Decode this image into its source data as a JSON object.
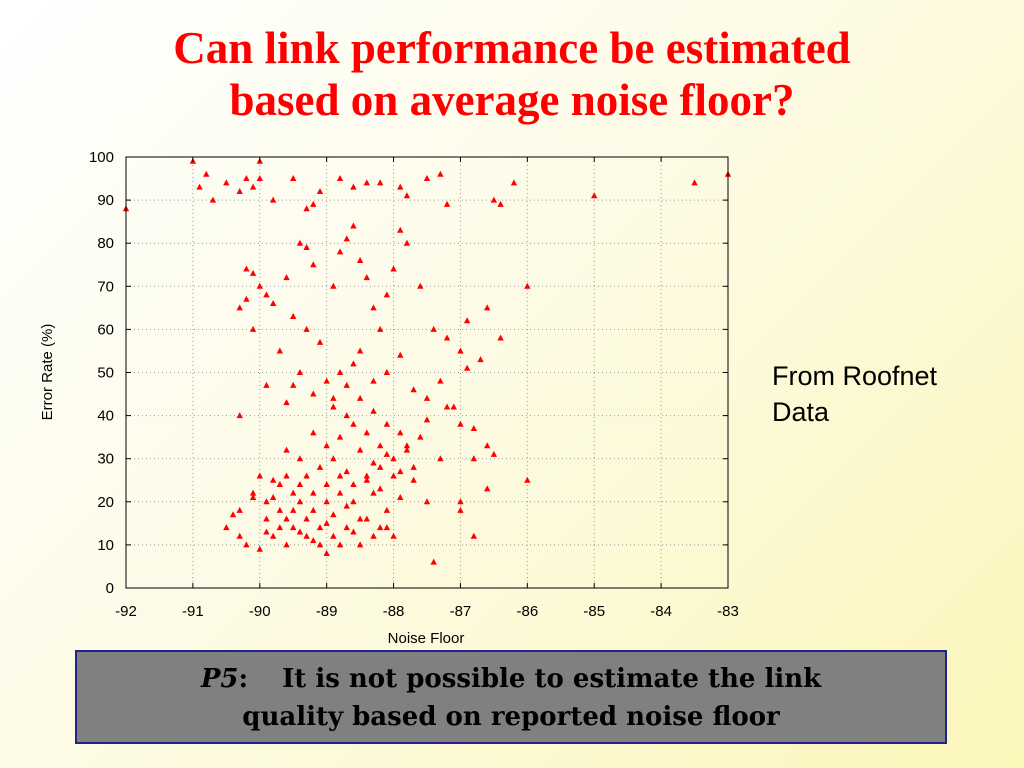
{
  "slide": {
    "title_lines": [
      "Can link performance be estimated",
      "based on average noise floor?"
    ],
    "side_note_lines": [
      "From Roofnet",
      "Data"
    ],
    "callout": {
      "label": "P5",
      "separator": ":",
      "lines": [
        "It is not possible to estimate the link",
        "quality based on reported noise floor"
      ]
    }
  },
  "chart_data": {
    "type": "scatter",
    "title": "",
    "xlabel": "Noise Floor",
    "ylabel": "Error Rate (%)",
    "xlim": [
      -92,
      -83
    ],
    "ylim": [
      0,
      100
    ],
    "xticks": [
      -92,
      -91,
      -90,
      -89,
      -88,
      -87,
      -86,
      -85,
      -84,
      -83
    ],
    "yticks": [
      0,
      10,
      20,
      30,
      40,
      50,
      60,
      70,
      80,
      90,
      100
    ],
    "grid": true,
    "marker": "triangle",
    "color": "#ff0000",
    "series": [
      {
        "points": [
          [
            -92,
            88
          ],
          [
            -91,
            99
          ],
          [
            -90.9,
            93
          ],
          [
            -90.8,
            96
          ],
          [
            -90.7,
            90
          ],
          [
            -90.5,
            94
          ],
          [
            -90.3,
            92
          ],
          [
            -90.2,
            95
          ],
          [
            -90.1,
            93
          ],
          [
            -90,
            99
          ],
          [
            -90,
            95
          ],
          [
            -89.8,
            90
          ],
          [
            -89.5,
            95
          ],
          [
            -89.3,
            88
          ],
          [
            -89.2,
            89
          ],
          [
            -89.1,
            92
          ],
          [
            -88.8,
            95
          ],
          [
            -88.6,
            93
          ],
          [
            -88.4,
            94
          ],
          [
            -88.2,
            94
          ],
          [
            -87.9,
            93
          ],
          [
            -87.8,
            91
          ],
          [
            -87.5,
            95
          ],
          [
            -87.3,
            96
          ],
          [
            -87.2,
            89
          ],
          [
            -86.5,
            90
          ],
          [
            -86.4,
            89
          ],
          [
            -86.2,
            94
          ],
          [
            -85,
            91
          ],
          [
            -83.5,
            94
          ],
          [
            -83,
            96
          ],
          [
            -90.2,
            74
          ],
          [
            -90.1,
            73
          ],
          [
            -90,
            70
          ],
          [
            -89.9,
            68
          ],
          [
            -90.3,
            65
          ],
          [
            -90.2,
            67
          ],
          [
            -90.1,
            60
          ],
          [
            -89.8,
            66
          ],
          [
            -89.6,
            72
          ],
          [
            -89.4,
            80
          ],
          [
            -89.3,
            79
          ],
          [
            -89.2,
            75
          ],
          [
            -89.5,
            63
          ],
          [
            -89.3,
            60
          ],
          [
            -89.1,
            57
          ],
          [
            -88.9,
            70
          ],
          [
            -88.8,
            78
          ],
          [
            -88.7,
            81
          ],
          [
            -88.6,
            84
          ],
          [
            -88.5,
            76
          ],
          [
            -88.4,
            72
          ],
          [
            -88.3,
            65
          ],
          [
            -88.2,
            60
          ],
          [
            -88.1,
            68
          ],
          [
            -88,
            74
          ],
          [
            -87.9,
            83
          ],
          [
            -87.8,
            80
          ],
          [
            -87.6,
            70
          ],
          [
            -87.4,
            60
          ],
          [
            -87.2,
            58
          ],
          [
            -87,
            55
          ],
          [
            -86.9,
            62
          ],
          [
            -86.6,
            65
          ],
          [
            -86.4,
            58
          ],
          [
            -86,
            70
          ],
          [
            -88.8,
            50
          ],
          [
            -88.6,
            52
          ],
          [
            -88.5,
            55
          ],
          [
            -88.3,
            48
          ],
          [
            -88.1,
            50
          ],
          [
            -87.9,
            54
          ],
          [
            -87.7,
            46
          ],
          [
            -87.5,
            44
          ],
          [
            -87.3,
            48
          ],
          [
            -87.1,
            42
          ],
          [
            -86.9,
            51
          ],
          [
            -86.7,
            53
          ],
          [
            -89.5,
            47
          ],
          [
            -89.4,
            50
          ],
          [
            -89.2,
            45
          ],
          [
            -89,
            48
          ],
          [
            -89.9,
            47
          ],
          [
            -90.3,
            40
          ],
          [
            -89.7,
            55
          ],
          [
            -89.6,
            43
          ],
          [
            -88.9,
            44
          ],
          [
            -88.7,
            40
          ],
          [
            -87,
            38
          ],
          [
            -86.8,
            37
          ],
          [
            -86.6,
            33
          ],
          [
            -86.5,
            31
          ],
          [
            -86.8,
            30
          ],
          [
            -86.6,
            23
          ],
          [
            -86,
            25
          ],
          [
            -87,
            20
          ],
          [
            -87,
            18
          ],
          [
            -86.8,
            12
          ],
          [
            -87.4,
            6
          ],
          [
            -87.5,
            39
          ],
          [
            -87.6,
            35
          ],
          [
            -87.3,
            30
          ],
          [
            -87.2,
            42
          ],
          [
            -87.8,
            33
          ],
          [
            -87.7,
            28
          ],
          [
            -88.2,
            23
          ],
          [
            -88.4,
            25
          ],
          [
            -88.6,
            20
          ],
          [
            -88.8,
            22
          ],
          [
            -89,
            15
          ],
          [
            -89.2,
            18
          ],
          [
            -89.4,
            20
          ],
          [
            -89.6,
            16
          ],
          [
            -89.8,
            12
          ],
          [
            -90,
            9
          ],
          [
            -90.2,
            10
          ],
          [
            -90.3,
            12
          ],
          [
            -90.5,
            14
          ],
          [
            -90.4,
            17
          ],
          [
            -90.3,
            18
          ],
          [
            -90.1,
            21
          ],
          [
            -89.9,
            20
          ],
          [
            -89.7,
            24
          ],
          [
            -89.5,
            22
          ],
          [
            -89.3,
            26
          ],
          [
            -89.1,
            28
          ],
          [
            -88.9,
            30
          ],
          [
            -88.7,
            27
          ],
          [
            -88.5,
            32
          ],
          [
            -88.3,
            29
          ],
          [
            -88.1,
            31
          ],
          [
            -87.9,
            27
          ],
          [
            -87.7,
            25
          ],
          [
            -87.5,
            20
          ],
          [
            -88,
            12
          ],
          [
            -88.2,
            14
          ],
          [
            -88.4,
            16
          ],
          [
            -88.6,
            13
          ],
          [
            -88.8,
            10
          ],
          [
            -89,
            8
          ],
          [
            -89.2,
            11
          ],
          [
            -89.4,
            13
          ],
          [
            -89.6,
            10
          ],
          [
            -89,
            20
          ],
          [
            -88.9,
            17
          ],
          [
            -88.7,
            19
          ],
          [
            -88.5,
            16
          ],
          [
            -88.3,
            22
          ],
          [
            -88.1,
            18
          ],
          [
            -87.9,
            21
          ],
          [
            -89.1,
            14
          ],
          [
            -89.3,
            16
          ],
          [
            -89.5,
            18
          ],
          [
            -89.7,
            14
          ],
          [
            -89.9,
            16
          ],
          [
            -89,
            33
          ],
          [
            -88.8,
            35
          ],
          [
            -88.6,
            38
          ],
          [
            -88.4,
            36
          ],
          [
            -88.2,
            33
          ],
          [
            -88,
            30
          ],
          [
            -87.8,
            32
          ],
          [
            -89.2,
            36
          ],
          [
            -89.4,
            30
          ],
          [
            -89.6,
            32
          ],
          [
            -89.8,
            25
          ],
          [
            -90,
            26
          ],
          [
            -90.1,
            22
          ],
          [
            -89.9,
            13
          ],
          [
            -88.3,
            41
          ],
          [
            -88.5,
            44
          ],
          [
            -88.7,
            47
          ],
          [
            -88.9,
            42
          ],
          [
            -88.1,
            38
          ],
          [
            -87.9,
            36
          ],
          [
            -88,
            26
          ],
          [
            -88.2,
            28
          ],
          [
            -88.4,
            26
          ],
          [
            -88.6,
            24
          ],
          [
            -88.8,
            26
          ],
          [
            -89,
            24
          ],
          [
            -89.2,
            22
          ],
          [
            -89.4,
            24
          ],
          [
            -89.6,
            26
          ],
          [
            -89.8,
            21
          ],
          [
            -88.1,
            14
          ],
          [
            -88.3,
            12
          ],
          [
            -88.5,
            10
          ],
          [
            -88.7,
            14
          ],
          [
            -88.9,
            12
          ],
          [
            -89.1,
            10
          ],
          [
            -89.3,
            12
          ],
          [
            -89.5,
            14
          ],
          [
            -89.7,
            18
          ]
        ]
      }
    ]
  }
}
